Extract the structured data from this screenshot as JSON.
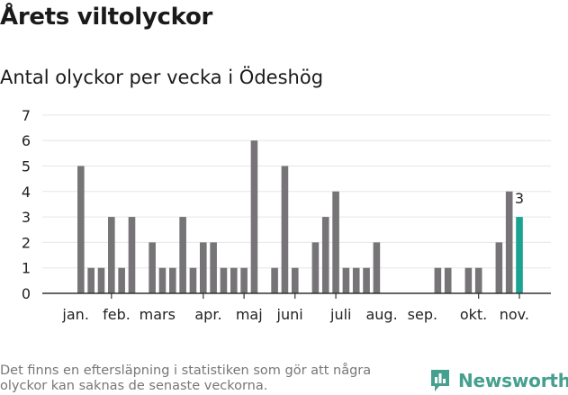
{
  "header": {
    "title": "Årets viltolyckor",
    "subtitle": "Antal olyckor per vecka i Ödeshög"
  },
  "footer": {
    "note": "Det finns en eftersläpning i statistiken som gör att några olyckor kan saknas de senaste veckorna.",
    "brand": "Newsworthy",
    "brand_icon": "newsworthy-logo-icon"
  },
  "colors": {
    "bar": "#767477",
    "highlight": "#1aa391",
    "brand": "#45a08f",
    "grid": "#e6e6e6",
    "axis": "#333333"
  },
  "chart_data": {
    "type": "bar",
    "title": "Antal olyckor per vecka i Ödeshög",
    "xlabel": "",
    "ylabel": "",
    "ylim": [
      0,
      7
    ],
    "yticks": [
      0,
      1,
      2,
      3,
      4,
      5,
      6,
      7
    ],
    "grid": true,
    "weeks": [
      1,
      2,
      3,
      4,
      5,
      6,
      7,
      8,
      9,
      10,
      11,
      12,
      13,
      14,
      15,
      16,
      17,
      18,
      19,
      20,
      21,
      22,
      23,
      24,
      25,
      26,
      27,
      28,
      29,
      30,
      31,
      32,
      33,
      34,
      35,
      36,
      37,
      38,
      39,
      40,
      41,
      42,
      43,
      44,
      45,
      46
    ],
    "values": [
      0,
      5,
      1,
      1,
      3,
      1,
      3,
      0,
      2,
      1,
      1,
      3,
      1,
      2,
      2,
      1,
      1,
      1,
      6,
      0,
      1,
      5,
      1,
      0,
      2,
      3,
      4,
      1,
      1,
      1,
      2,
      0,
      0,
      0,
      0,
      0,
      1,
      1,
      0,
      1,
      1,
      0,
      2,
      4,
      3,
      0
    ],
    "highlight_week": 45,
    "highlight_label": "3",
    "month_labels": [
      {
        "label": "jan.",
        "week": 1.5
      },
      {
        "label": "feb.",
        "week": 5.5
      },
      {
        "label": "mars",
        "week": 9.5
      },
      {
        "label": "apr.",
        "week": 14.5
      },
      {
        "label": "maj",
        "week": 18.5
      },
      {
        "label": "juni",
        "week": 22.5
      },
      {
        "label": "juli",
        "week": 27.5
      },
      {
        "label": "aug.",
        "week": 31.5
      },
      {
        "label": "sep.",
        "week": 35.5
      },
      {
        "label": "okt.",
        "week": 40.5
      },
      {
        "label": "nov.",
        "week": 44.5
      }
    ],
    "month_ticks": [
      5,
      14,
      18,
      23,
      27,
      41,
      45
    ]
  }
}
